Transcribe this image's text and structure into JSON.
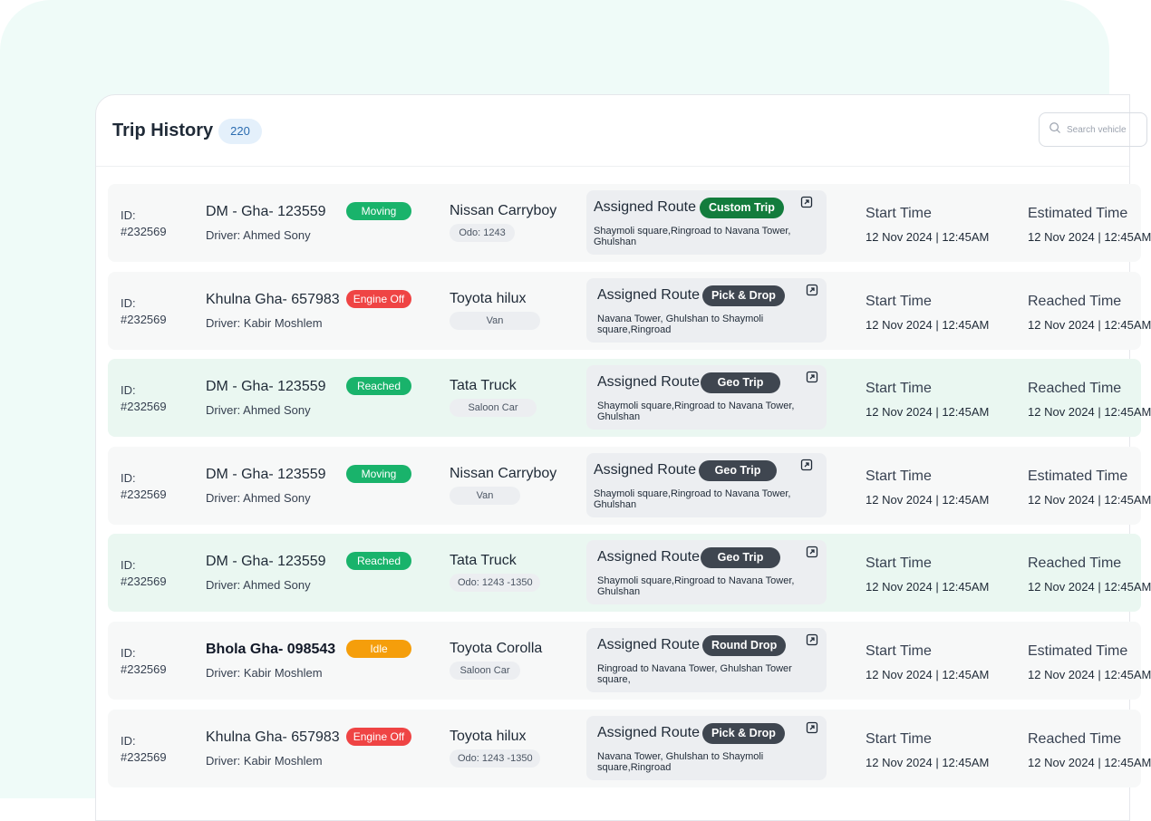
{
  "header": {
    "title": "Trip History",
    "count": "220",
    "search_placeholder": "Search vehicle"
  },
  "trips": [
    {
      "id_label": "ID:",
      "id": "#232569",
      "plate": "DM - Gha- 123559",
      "driver": "Driver: Ahmed Sony",
      "status": "Moving",
      "status_type": "moving",
      "model": "Nissan Carryboy",
      "subtag": "Odo: 1243",
      "route_title": "Assigned Route",
      "route_tag": "Custom Trip",
      "route_desc": "Shaymoli square,Ringroad to Navana Tower, Ghulshan",
      "start_label": "Start Time",
      "start_time": "12 Nov 2024 | 12:45AM",
      "end_label": "Estimated Time",
      "end_time": "12 Nov 2024 | 12:45AM"
    },
    {
      "id_label": "ID:",
      "id": "#232569",
      "plate": "Khulna Gha- 657983",
      "driver": "Driver: Kabir Moshlem",
      "status": "Engine Off",
      "status_type": "engine",
      "model": "Toyota hilux",
      "subtag": "Van",
      "route_title": "Assigned Route",
      "route_tag": "Pick & Drop",
      "route_desc": "Navana Tower, Ghulshan to Shaymoli square,Ringroad",
      "start_label": "Start Time",
      "start_time": "12 Nov 2024 | 12:45AM",
      "end_label": "Reached Time",
      "end_time": "12 Nov 2024 | 12:45AM"
    },
    {
      "id_label": "ID:",
      "id": "#232569",
      "plate": "DM - Gha- 123559",
      "driver": "Driver: Ahmed Sony",
      "status": "Reached",
      "status_type": "reached",
      "model": "Tata Truck",
      "subtag": "Saloon Car",
      "route_title": "Assigned Route",
      "route_tag": "Geo Trip",
      "route_desc": "Shaymoli square,Ringroad to Navana Tower, Ghulshan",
      "start_label": "Start Time",
      "start_time": "12 Nov 2024 | 12:45AM",
      "end_label": "Reached Time",
      "end_time": "12 Nov 2024 | 12:45AM"
    },
    {
      "id_label": "ID:",
      "id": "#232569",
      "plate": "DM - Gha- 123559",
      "driver": "Driver: Ahmed Sony",
      "status": "Moving",
      "status_type": "moving",
      "model": "Nissan Carryboy",
      "subtag": "Van",
      "route_title": "Assigned Route",
      "route_tag": "Geo Trip",
      "route_desc": "Shaymoli square,Ringroad to Navana Tower, Ghulshan",
      "start_label": "Start Time",
      "start_time": "12 Nov 2024 | 12:45AM",
      "end_label": "Estimated Time",
      "end_time": "12 Nov 2024 | 12:45AM"
    },
    {
      "id_label": "ID:",
      "id": "#232569",
      "plate": "DM - Gha- 123559",
      "driver": "Driver: Ahmed Sony",
      "status": "Reached",
      "status_type": "reached",
      "model": "Tata Truck",
      "subtag": "Odo: 1243 -1350",
      "route_title": "Assigned Route",
      "route_tag": "Geo Trip",
      "route_desc": "Shaymoli square,Ringroad to Navana Tower, Ghulshan",
      "start_label": "Start Time",
      "start_time": "12 Nov 2024 | 12:45AM",
      "end_label": "Reached Time",
      "end_time": "12 Nov 2024 | 12:45AM"
    },
    {
      "id_label": "ID:",
      "id": "#232569",
      "plate": "Bhola Gha- 098543",
      "driver": "Driver: Kabir Moshlem",
      "status": "Idle",
      "status_type": "idle",
      "model": "Toyota  Corolla",
      "subtag": "Saloon Car",
      "route_title": "Assigned Route",
      "route_tag": "Round Drop",
      "route_desc": "Ringroad to Navana Tower, Ghulshan Tower square,",
      "start_label": "Start Time",
      "start_time": "12 Nov 2024 | 12:45AM",
      "end_label": "Estimated Time",
      "end_time": "12 Nov 2024 | 12:45AM"
    },
    {
      "id_label": "ID:",
      "id": "#232569",
      "plate": "Khulna Gha- 657983",
      "driver": "Driver: Kabir Moshlem",
      "status": "Engine Off",
      "status_type": "engine",
      "model": "Toyota hilux",
      "subtag": "Odo: 1243 -1350",
      "route_title": "Assigned Route",
      "route_tag": "Pick & Drop",
      "route_desc": "Navana Tower, Ghulshan to Shaymoli square,Ringroad",
      "start_label": "Start Time",
      "start_time": "12 Nov 2024 | 12:45AM",
      "end_label": "Reached Time",
      "end_time": "12 Nov 2024 | 12:45AM"
    }
  ]
}
